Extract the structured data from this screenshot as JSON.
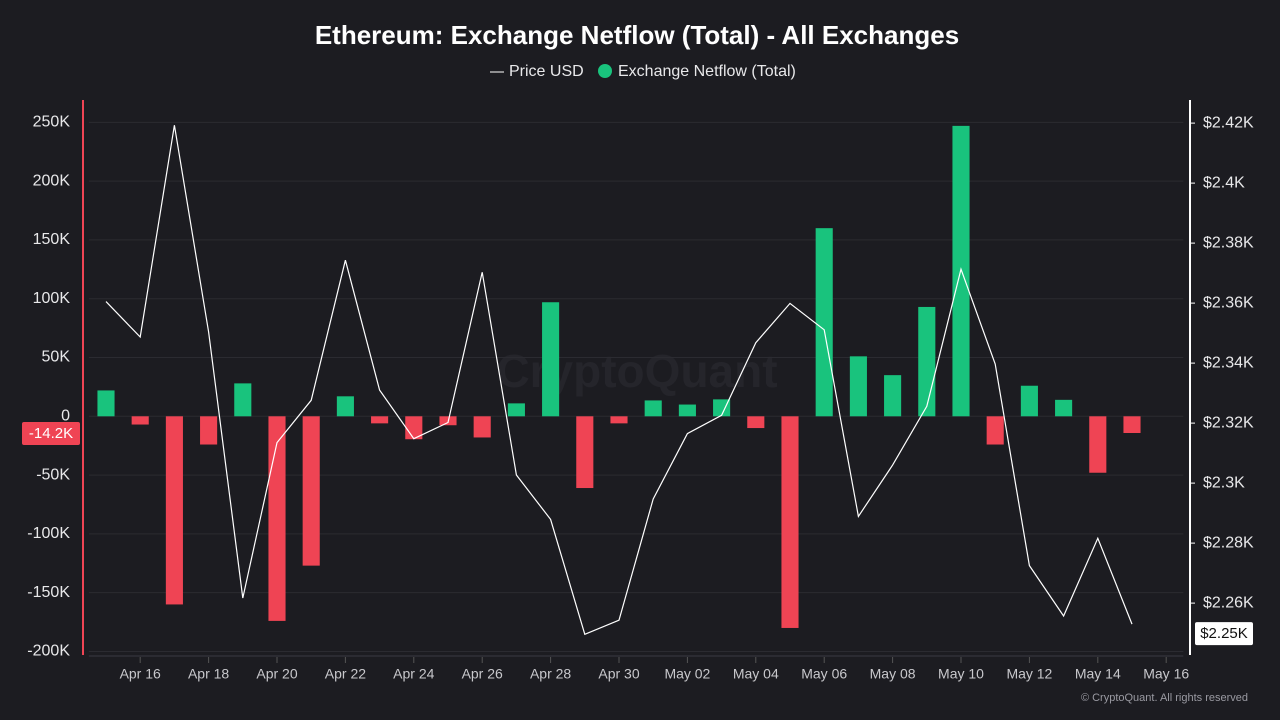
{
  "chart_data": {
    "type": "bar-line",
    "title": "Ethereum: Exchange Netflow (Total) - All Exchanges",
    "watermark": "CryptoQuant",
    "footer": "© CryptoQuant. All rights reserved",
    "categories": [
      null,
      "Apr 16",
      null,
      "Apr 18",
      null,
      "Apr 20",
      null,
      "Apr 22",
      null,
      "Apr 24",
      null,
      "Apr 26",
      null,
      "Apr 28",
      null,
      "Apr 30",
      null,
      "May 02",
      null,
      "May 04",
      null,
      "May 06",
      null,
      "May 08",
      null,
      "May 10",
      null,
      "May 12",
      null,
      "May 14",
      null,
      "May 16"
    ],
    "series": [
      {
        "name": "Exchange Netflow (Total)",
        "kind": "bar",
        "color": "#19c37d",
        "negative_color": "#ef4454",
        "values": [
          22000,
          -7000,
          -160000,
          -24000,
          28000,
          -174000,
          -127000,
          17000,
          -6000,
          -19500,
          -7600,
          -18000,
          11000,
          97000,
          -61000,
          -6000,
          13500,
          10000,
          14400,
          -10000,
          -180000,
          160000,
          51000,
          35000,
          93000,
          247000,
          -24000,
          26000,
          14000,
          -48000,
          -14200,
          null
        ]
      },
      {
        "name": "Price USD",
        "kind": "line",
        "axis": "y2",
        "color": "#ffffff",
        "values": [
          2360.5,
          2348.7,
          2419.3,
          2350.4,
          2261.7,
          2313.5,
          2327.6,
          2374.3,
          2331.0,
          2314.8,
          2320.2,
          2370.3,
          2302.7,
          2287.9,
          2249.6,
          2254.3,
          2294.7,
          2316.5,
          2322.6,
          2346.8,
          2359.9,
          2351.1,
          2288.9,
          2306.0,
          2325.6,
          2371.3,
          2339.7,
          2272.5,
          2255.7,
          2281.6,
          2253.0,
          null
        ]
      }
    ],
    "ylim": [
      -203000,
      269000
    ],
    "yticks": [
      {
        "value": -200000,
        "label": "-200K"
      },
      {
        "value": -150000,
        "label": "-150K"
      },
      {
        "value": -100000,
        "label": "-100K"
      },
      {
        "value": -50000,
        "label": "-50K"
      },
      0,
      {
        "value": 50000,
        "label": "50K"
      },
      {
        "value": 100000,
        "label": "100K"
      },
      {
        "value": 150000,
        "label": "150K"
      },
      {
        "value": 200000,
        "label": "200K"
      },
      {
        "value": 250000,
        "label": "250K"
      }
    ],
    "y2lim": [
      2242.7,
      2427.7
    ],
    "y2ticks": [
      {
        "value": 2260,
        "label": "$2.26K"
      },
      {
        "value": 2280,
        "label": "$2.28K"
      },
      {
        "value": 2300,
        "label": "$2.3K"
      },
      {
        "value": 2320,
        "label": "$2.32K"
      },
      {
        "value": 2340,
        "label": "$2.34K"
      },
      {
        "value": 2360,
        "label": "$2.36K"
      },
      {
        "value": 2380,
        "label": "$2.38K"
      },
      {
        "value": 2400,
        "label": "$2.4K"
      },
      {
        "value": 2420,
        "label": "$2.42K"
      }
    ],
    "last_netflow": {
      "value": -14200,
      "label": "-14.2K"
    },
    "last_price": {
      "value": 2250,
      "label": "$2.25K"
    },
    "grid": true
  }
}
